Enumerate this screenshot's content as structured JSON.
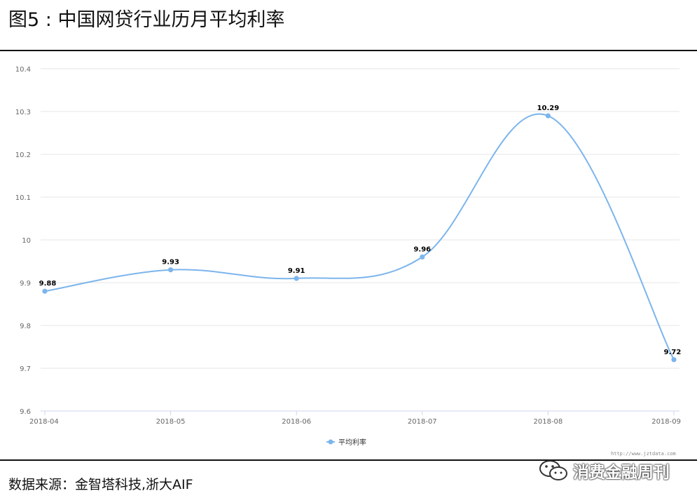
{
  "figure_title": "图5 : 中国网贷行业历月平均利率",
  "source_text": "数据来源：金智塔科技,浙大AIF",
  "watermark_url": "http://www.jztdata.com",
  "brand_name": "消费金融周刊",
  "brand_icon": "wechat-icon",
  "colors": {
    "series": "#7cb5ec",
    "grid": "#e6e6e6",
    "axis_text": "#666666"
  },
  "chart_data": {
    "type": "line",
    "smooth": true,
    "categories": [
      "2018-04",
      "2018-05",
      "2018-06",
      "2018-07",
      "2018-08",
      "2018-09"
    ],
    "series": [
      {
        "name": "平均利率",
        "values": [
          9.88,
          9.93,
          9.91,
          9.96,
          10.29,
          9.72
        ]
      }
    ],
    "data_labels": [
      "9.88",
      "9.93",
      "9.91",
      "9.96",
      "10.29",
      "9.72"
    ],
    "ylim": [
      9.6,
      10.4
    ],
    "yticks": [
      9.6,
      9.7,
      9.8,
      9.9,
      10,
      10.1,
      10.2,
      10.3,
      10.4
    ],
    "ytick_labels": [
      "9.6",
      "9.7",
      "9.8",
      "9.9",
      "10",
      "10.1",
      "10.2",
      "10.3",
      "10.4"
    ],
    "grid": "horizontal",
    "legend": "bottom-center",
    "title": "",
    "xlabel": "",
    "ylabel": ""
  }
}
